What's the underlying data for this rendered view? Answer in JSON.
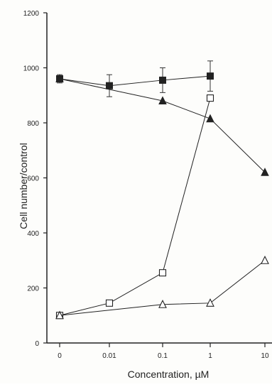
{
  "chart_data": {
    "type": "line",
    "title": "",
    "xlabel": "Concentration, µM",
    "ylabel": "Cell number/control",
    "x_scale": "log",
    "x_ticks": [
      "0",
      "0.01",
      "0.1",
      "1",
      "10"
    ],
    "y_ticks": [
      "0",
      "200",
      "400",
      "600",
      "800",
      "1000",
      "1200"
    ],
    "ylim": [
      0,
      1200
    ],
    "grid": false,
    "legend": "none",
    "series": [
      {
        "marker": "filled-square",
        "color": "#222222",
        "x": [
          "0",
          "0.01",
          "0.1",
          "1"
        ],
        "y": [
          960,
          935,
          955,
          970
        ],
        "err": [
          15,
          40,
          45,
          55
        ]
      },
      {
        "marker": "filled-triangle",
        "color": "#222222",
        "x": [
          "0",
          "0.1",
          "1",
          "10"
        ],
        "y": [
          960,
          880,
          815,
          620
        ]
      },
      {
        "marker": "open-square",
        "color": "#222222",
        "x": [
          "0",
          "0.01",
          "0.1",
          "1"
        ],
        "y": [
          100,
          145,
          255,
          890
        ]
      },
      {
        "marker": "open-triangle",
        "color": "#222222",
        "x": [
          "0",
          "0.1",
          "1",
          "10"
        ],
        "y": [
          100,
          140,
          145,
          300
        ]
      }
    ]
  }
}
